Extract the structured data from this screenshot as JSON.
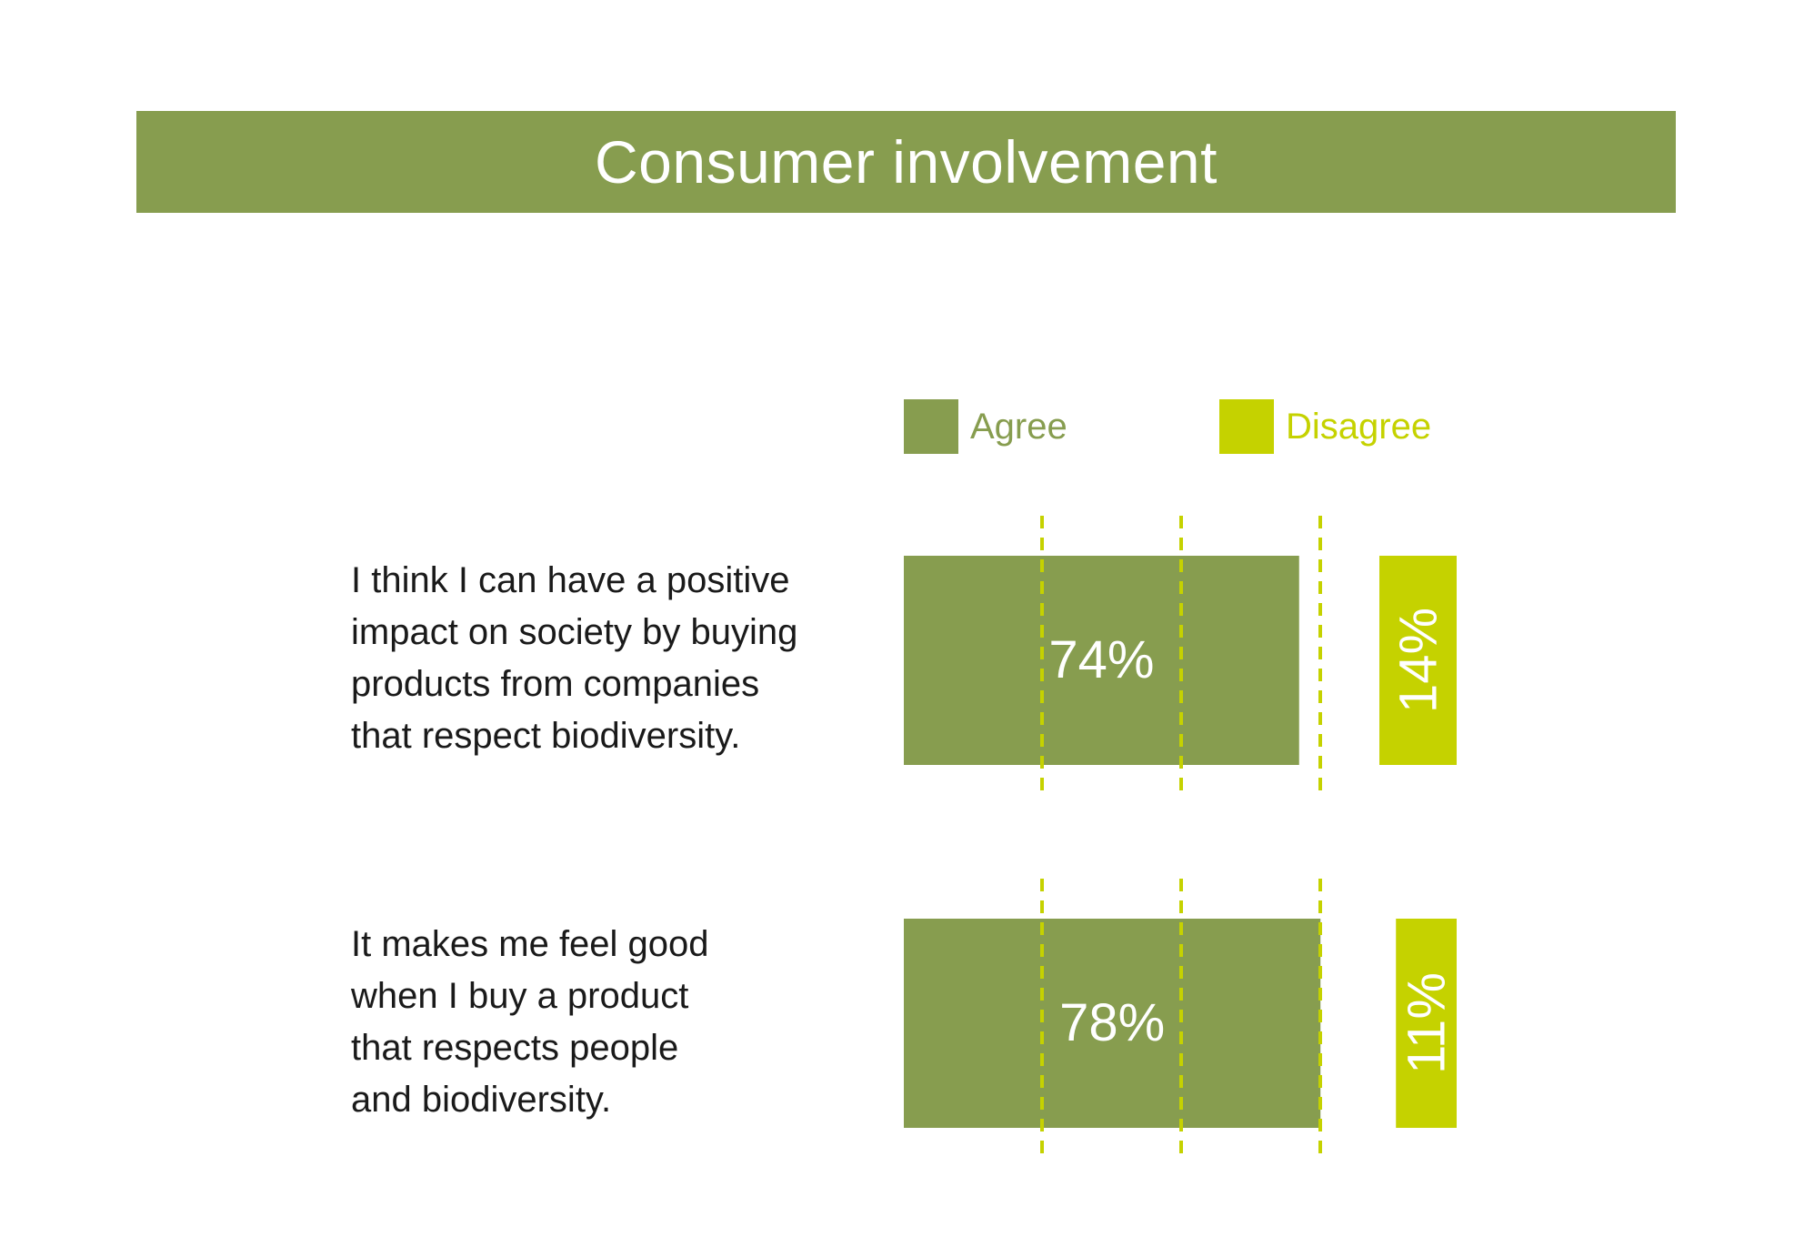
{
  "colors": {
    "agree": "#879d4f",
    "disagree": "#c5d200",
    "gridline": "#c5d200",
    "header_bg": "#879d4f",
    "bar_label": "#ffffff",
    "statement_text": "#1a1a1a"
  },
  "header": {
    "title": "Consumer involvement"
  },
  "legend": {
    "agree_label": "Agree",
    "disagree_label": "Disagree"
  },
  "chart_data": {
    "type": "bar",
    "orientation": "horizontal",
    "title": "Consumer involvement",
    "categories": [
      "I think I can have a positive impact on society by buying products from companies that respect biodiversity.",
      "It makes me feel good when I buy a product that respects people and biodiversity."
    ],
    "category_lines": [
      [
        "I think I can have a positive",
        "impact on society by buying",
        "products from companies",
        "that respect biodiversity."
      ],
      [
        "It makes me feel good",
        "when I buy a product",
        "that respects people",
        "and biodiversity."
      ]
    ],
    "series": [
      {
        "name": "Agree",
        "values": [
          74,
          78
        ],
        "labels": [
          "74%",
          "78%"
        ]
      },
      {
        "name": "Disagree",
        "values": [
          14,
          11
        ],
        "labels": [
          "14%",
          "11%"
        ]
      }
    ],
    "unit": "%",
    "grid": "dashed vertical lines",
    "legend_position": "top"
  }
}
